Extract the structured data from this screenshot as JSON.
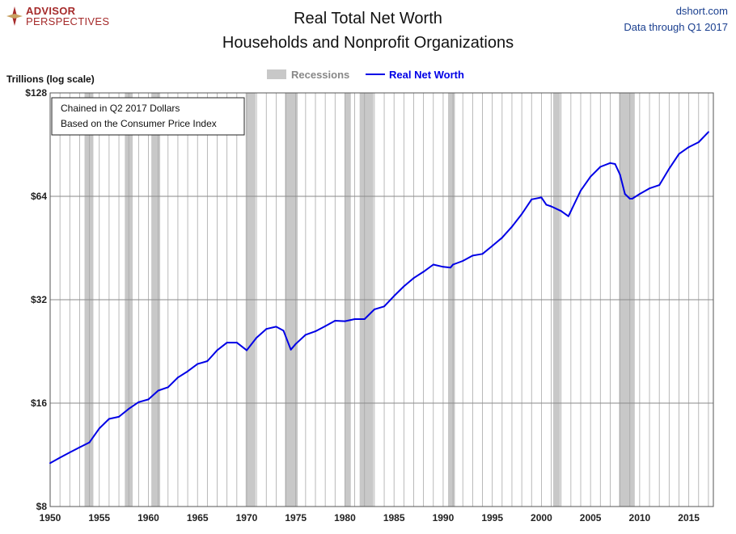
{
  "branding": {
    "logo_line1": "ADVISOR",
    "logo_line2": "PERSPECTIVES",
    "source": "dshort.com",
    "data_through": "Data through Q1 2017"
  },
  "chart_data": {
    "type": "line",
    "title": "Real Total Net Worth",
    "subtitle": "Households and Nonprofit Organizations",
    "ylabel": "Trillions (log scale)",
    "xlabel": "",
    "y_scale": "log2",
    "ylim": [
      8,
      128
    ],
    "xlim": [
      1950,
      2017.5
    ],
    "y_ticks": [
      8,
      16,
      32,
      64,
      128
    ],
    "y_tick_labels": [
      "$8",
      "$16",
      "$32",
      "$64",
      "$128"
    ],
    "x_ticks": [
      1950,
      1955,
      1960,
      1965,
      1970,
      1975,
      1980,
      1985,
      1990,
      1995,
      2000,
      2005,
      2010,
      2015
    ],
    "x_tick_labels": [
      "1950",
      "1955",
      "1960",
      "1965",
      "1970",
      "1975",
      "1980",
      "1985",
      "1990",
      "1995",
      "2000",
      "2005",
      "2010",
      "2015"
    ],
    "grid": true,
    "legend": {
      "placement": "top-center",
      "recession_label": "Recessions",
      "series_label": "Real Net Worth"
    },
    "annotation": [
      "Chained in Q2 2017  Dollars",
      "Based on the Consumer Price Index"
    ],
    "recessions": [
      [
        1953.5,
        1954.4
      ],
      [
        1957.6,
        1958.4
      ],
      [
        1960.3,
        1961.2
      ],
      [
        1969.9,
        1970.9
      ],
      [
        1973.9,
        1975.2
      ],
      [
        1980.0,
        1980.6
      ],
      [
        1981.5,
        1982.9
      ],
      [
        1990.5,
        1991.2
      ],
      [
        2001.2,
        2001.9
      ],
      [
        2007.9,
        2009.5
      ]
    ],
    "colors": {
      "series": "#0000e6",
      "recession": "#c8c8c8",
      "grid": "#a8a8a8",
      "axis": "#555555"
    },
    "series": [
      {
        "name": "Real Net Worth",
        "x": [
          1950,
          1951,
          1952,
          1953,
          1954,
          1955,
          1956,
          1957,
          1958,
          1959,
          1960,
          1961,
          1962,
          1963,
          1964,
          1965,
          1966,
          1967,
          1968,
          1969,
          1970,
          1971,
          1972,
          1973,
          1973.75,
          1974.5,
          1975,
          1976,
          1977,
          1978,
          1979,
          1980,
          1981,
          1982,
          1983,
          1984,
          1985,
          1986,
          1987,
          1988,
          1989,
          1990,
          1990.75,
          1991,
          1992,
          1993,
          1994,
          1995,
          1996,
          1997,
          1998,
          1999,
          2000,
          2000.5,
          2001,
          2002,
          2002.75,
          2003,
          2004,
          2005,
          2006,
          2007,
          2007.5,
          2008,
          2008.5,
          2009,
          2009.25,
          2010,
          2011,
          2012,
          2013,
          2014,
          2015,
          2016,
          2017
        ],
        "values": [
          10.7,
          11.1,
          11.5,
          11.9,
          12.3,
          13.5,
          14.4,
          14.6,
          15.4,
          16.1,
          16.4,
          17.4,
          17.8,
          19.0,
          19.8,
          20.8,
          21.2,
          22.8,
          24.0,
          24.0,
          22.8,
          24.8,
          26.3,
          26.7,
          26.0,
          22.9,
          23.8,
          25.3,
          25.9,
          26.8,
          27.8,
          27.7,
          28.1,
          28.1,
          30.0,
          30.6,
          32.8,
          35.0,
          37.0,
          38.6,
          40.5,
          39.9,
          39.7,
          40.5,
          41.5,
          43.0,
          43.5,
          45.9,
          48.5,
          52.2,
          56.8,
          62.7,
          63.5,
          60.5,
          59.8,
          58.0,
          56.0,
          58.0,
          66.5,
          73.0,
          78.0,
          80.0,
          79.5,
          74.0,
          65.0,
          63.0,
          63.0,
          65.0,
          67.5,
          69.0,
          77.0,
          85.0,
          89.0,
          92.0,
          98.5
        ]
      }
    ]
  }
}
